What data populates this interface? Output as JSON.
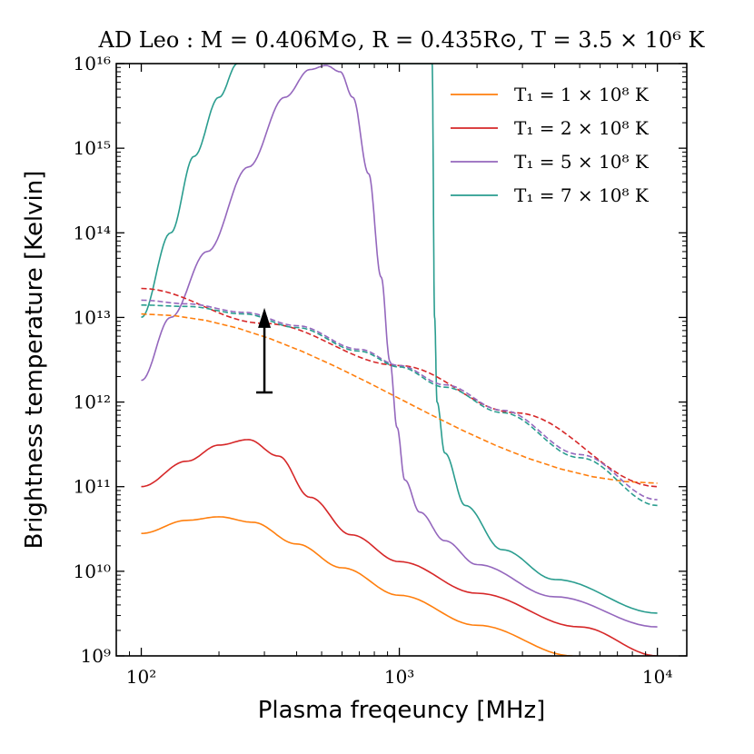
{
  "chart_data": {
    "type": "line",
    "title": "AD Leo : M = 0.406M⊙, R = 0.435R⊙, T = 3.5 × 10⁶ K",
    "xlabel": "Plasma freqeuncy [MHz]",
    "ylabel": "Brightness temperature [Kelvin]",
    "xscale": "log",
    "yscale": "log",
    "xlim": [
      80,
      13000
    ],
    "ylim": [
      1000000000.0,
      1e+16
    ],
    "x_ticks": [
      {
        "value": 100,
        "label": "10²"
      },
      {
        "value": 1000,
        "label": "10³"
      },
      {
        "value": 10000,
        "label": "10⁴"
      }
    ],
    "y_ticks": [
      {
        "value": 1000000000.0,
        "label": "10⁹"
      },
      {
        "value": 10000000000.0,
        "label": "10¹⁰"
      },
      {
        "value": 100000000000.0,
        "label": "10¹¹"
      },
      {
        "value": 1000000000000.0,
        "label": "10¹²"
      },
      {
        "value": 10000000000000.0,
        "label": "10¹³"
      },
      {
        "value": 100000000000000.0,
        "label": "10¹⁴"
      },
      {
        "value": 1000000000000000.0,
        "label": "10¹⁵"
      },
      {
        "value": 1e+16,
        "label": "10¹⁶"
      }
    ],
    "legend_position": "top-right",
    "series": [
      {
        "name": "T₁ = 1 × 10⁸ K",
        "color": "#ff7f0e",
        "style": "solid",
        "x": [
          100,
          150,
          200,
          270,
          400,
          600,
          1000,
          2000,
          4700
        ],
        "y": [
          28000000000.0,
          40000000000.0,
          44000000000.0,
          38000000000.0,
          21000000000.0,
          11000000000.0,
          5200000000.0,
          2300000000.0,
          1000000000.0
        ]
      },
      {
        "name": "T₁ = 2 × 10⁸ K",
        "color": "#d62728",
        "style": "solid",
        "x": [
          100,
          150,
          200,
          260,
          340,
          450,
          650,
          1000,
          2000,
          5000,
          10000
        ],
        "y": [
          100000000000.0,
          200000000000.0,
          310000000000.0,
          360000000000.0,
          230000000000.0,
          75000000000.0,
          27000000000.0,
          13000000000.0,
          5500000000.0,
          2200000000.0,
          1000000000.0
        ]
      },
      {
        "name": "T₁ = 5 × 10⁸ K",
        "color": "#9467bd",
        "style": "solid",
        "x": [
          100,
          130,
          180,
          260,
          360,
          450,
          520,
          590,
          660,
          760,
          850,
          920,
          980,
          1050,
          1200,
          1500,
          2000,
          4000,
          10000
        ],
        "y": [
          1800000000000.0,
          10000000000000.0,
          60000000000000.0,
          600000000000000.0,
          4000000000000000.0,
          8500000000000000.0,
          9500000000000000.0,
          8000000000000000.0,
          4000000000000000.0,
          500000000000000.0,
          30000000000000.0,
          3000000000000.0,
          500000000000.0,
          120000000000.0,
          50000000000.0,
          23000000000.0,
          12000000000.0,
          5000000000.0,
          2200000000.0
        ]
      },
      {
        "name": "T₁ = 7 × 10⁸ K",
        "color": "#2a9d8f",
        "style": "solid",
        "x": [
          100,
          130,
          160,
          200,
          236,
          1340,
          1370,
          1400,
          1500,
          1800,
          2500,
          4000,
          10000
        ],
        "y": [
          10000000000000.0,
          100000000000000.0,
          800000000000000.0,
          4000000000000000.0,
          1e+16,
          1e+16,
          10000000000000.0,
          1000000000000.0,
          250000000000.0,
          60000000000.0,
          18000000000.0,
          8000000000.0,
          3200000000.0
        ]
      },
      {
        "name": "T₁ = 1 × 10⁸ K (dashed)",
        "color": "#ff7f0e",
        "style": "dashed",
        "legend": false,
        "x": [
          100,
          10000
        ],
        "y": [
          11000000000000.0,
          110000000000.0
        ]
      },
      {
        "name": "T₁ = 2 × 10⁸ K (dashed)",
        "color": "#d62728",
        "style": "dashed",
        "legend": false,
        "x": [
          100,
          300,
          1000,
          2800,
          10000
        ],
        "y": [
          22000000000000.0,
          8500000000000.0,
          2700000000000.0,
          750000000000.0,
          100000000000.0
        ]
      },
      {
        "name": "T₁ = 5 × 10⁸ K (dashed)",
        "color": "#9467bd",
        "style": "dashed",
        "legend": false,
        "x": [
          100,
          150,
          250,
          400,
          700,
          1000,
          1500,
          2500,
          5000,
          10000
        ],
        "y": [
          16000000000000.0,
          14500000000000.0,
          11500000000000.0,
          8000000000000.0,
          4200000000000.0,
          2700000000000.0,
          1600000000000.0,
          800000000000.0,
          240000000000.0,
          70000000000.0
        ]
      },
      {
        "name": "T₁ = 7 × 10⁸ K (dashed)",
        "color": "#2a9d8f",
        "style": "dashed",
        "legend": false,
        "x": [
          100,
          150,
          250,
          400,
          700,
          1000,
          1500,
          2500,
          5000,
          10000
        ],
        "y": [
          14000000000000.0,
          13500000000000.0,
          11000000000000.0,
          7600000000000.0,
          4000000000000.0,
          2600000000000.0,
          1500000000000.0,
          750000000000.0,
          220000000000.0,
          60000000000.0
        ]
      }
    ],
    "annotations": [
      {
        "type": "lower-limit-arrow",
        "color": "#000000",
        "x": 300,
        "y_from": 1300000000000.0,
        "y_to": 13000000000000.0
      }
    ]
  }
}
